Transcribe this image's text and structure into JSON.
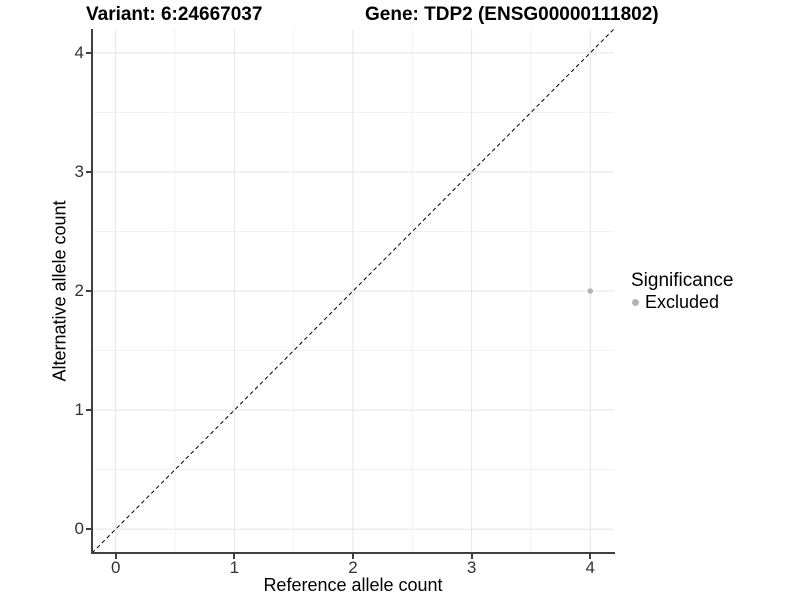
{
  "title": {
    "variant": "Variant: 6:24667037",
    "gene": "Gene: TDP2 (ENSG00000111802)"
  },
  "legend": {
    "title": "Significance",
    "items": [
      {
        "label": "Excluded",
        "color": "#b3b3b3"
      }
    ]
  },
  "colors": {
    "point": "#b3b3b3",
    "grid_major": "#e4e4e4",
    "grid_minor": "#f1f1f1",
    "axis_line": "#3f3f3f",
    "tick_label": "#333333",
    "reference_line": "#000000",
    "background": "#ffffff"
  },
  "chart_data": {
    "type": "scatter",
    "title_left": "Variant: 6:24667037",
    "title_right": "Gene: TDP2 (ENSG00000111802)",
    "xlabel": "Reference allele count",
    "ylabel": "Alternative allele count",
    "xlim": [
      -0.2,
      4.2
    ],
    "ylim": [
      -0.2,
      4.2
    ],
    "x_ticks": [
      "0",
      "1",
      "2",
      "3",
      "4"
    ],
    "y_ticks": [
      "0",
      "1",
      "2",
      "3",
      "4"
    ],
    "x_tick_values": [
      0,
      1,
      2,
      3,
      4
    ],
    "y_tick_values": [
      0,
      1,
      2,
      3,
      4
    ],
    "x_minor": [
      0.5,
      1.5,
      2.5,
      3.5
    ],
    "y_minor": [
      0.5,
      1.5,
      2.5,
      3.5
    ],
    "grid": "major+minor",
    "points": [
      {
        "x": 4,
        "y": 2,
        "significance": "Excluded"
      }
    ],
    "point_radius_px": 2.8,
    "reference_line": {
      "kind": "identity",
      "style": "dashed",
      "from": [
        -0.2,
        -0.2
      ],
      "to": [
        4.2,
        4.2
      ]
    },
    "legend_position": "right"
  }
}
